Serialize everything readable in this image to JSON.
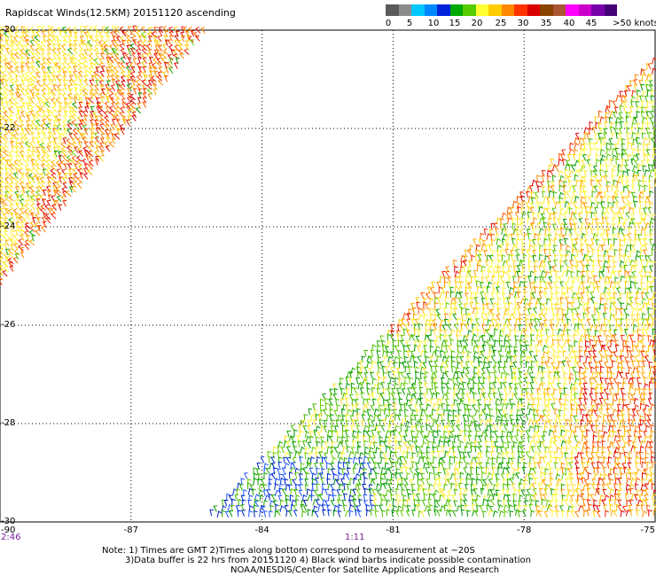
{
  "title": "Rapidscat Winds(12.5KM) 20151120 ascending",
  "colorbar": {
    "colors": [
      "#5a5a5a",
      "#8c8c8c",
      "#00c8ff",
      "#0088ff",
      "#0022dd",
      "#00aa00",
      "#55cc00",
      "#ffff33",
      "#ffcc00",
      "#ff8800",
      "#ff3300",
      "#dd0000",
      "#884400",
      "#aa5533",
      "#ff00ff",
      "#cc00cc",
      "#7700aa",
      "#440077"
    ],
    "labels": [
      "0",
      "5",
      "10",
      "15",
      "20",
      "25",
      "30",
      "35",
      "40",
      "45",
      ">50 knots"
    ]
  },
  "axes": {
    "lat_labels": [
      "-20",
      "-22",
      "-24",
      "-26",
      "-28",
      "-30"
    ],
    "lat_values": [
      -20,
      -22,
      -24,
      -26,
      -28,
      -30
    ],
    "lon_labels": [
      "-90",
      "-87",
      "-84",
      "-81",
      "-78",
      "-75"
    ],
    "lon_values": [
      -90,
      -87,
      -84,
      -81,
      -78,
      -75
    ],
    "lat_range": [
      -30,
      -20
    ],
    "lon_range": [
      -90,
      -75
    ],
    "grid": "dotted"
  },
  "times": {
    "left": "2:46",
    "middle": "1:11"
  },
  "notes": {
    "line1": "Note: 1) Times are GMT 2)Times along bottom correspond to measurement at −20S",
    "line2": "3)Data buffer is 22 hrs from 20151120 4) Black wind barbs indicate possible contamination",
    "line3": "NOAA/NESDIS/Center for Satellite Applications and Research"
  }
}
